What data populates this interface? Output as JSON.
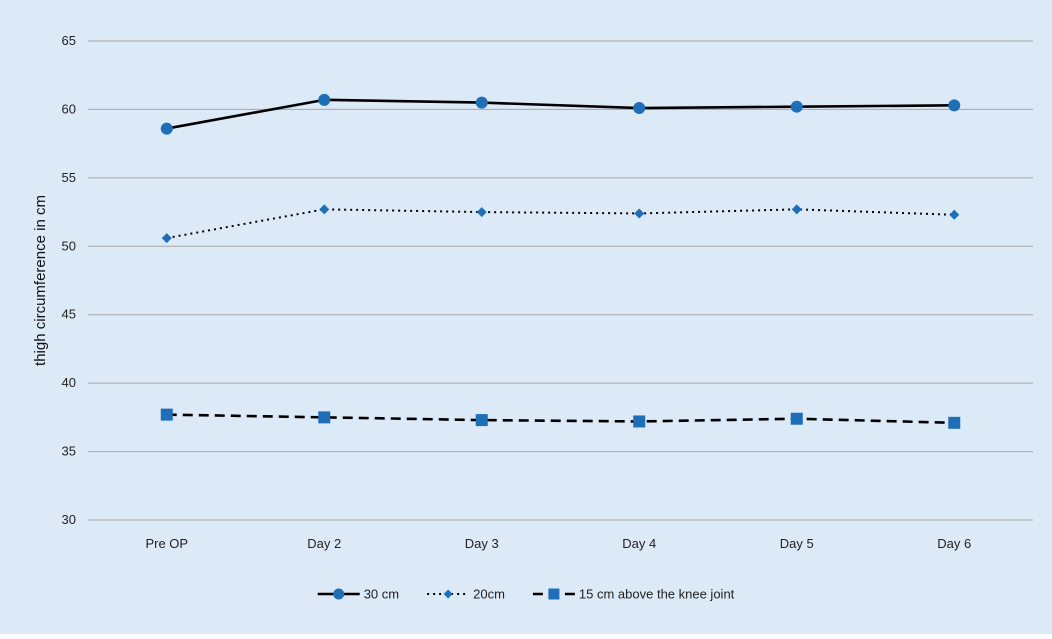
{
  "colors": {
    "background": "#dce9f7",
    "line": "#000000",
    "marker": "#1f6fb8",
    "grid": "#a6a6a6"
  },
  "chart_data": {
    "type": "line",
    "categories": [
      "Pre OP",
      "Day 2",
      "Day 3",
      "Day 4",
      "Day 5",
      "Day 6"
    ],
    "ylabel": "thigh circumference in cm",
    "ylim": [
      30,
      65
    ],
    "yticks": [
      30,
      35,
      40,
      45,
      50,
      55,
      60,
      65
    ],
    "grid": true,
    "legend_position": "bottom",
    "series": [
      {
        "name": "30 cm",
        "values": [
          58.6,
          60.7,
          60.5,
          60.1,
          60.2,
          60.3
        ],
        "dash": "solid",
        "marker": "circle"
      },
      {
        "name": "20cm",
        "values": [
          50.6,
          52.7,
          52.5,
          52.4,
          52.7,
          52.3
        ],
        "dash": "dotted",
        "marker": "diamond"
      },
      {
        "name": "15 cm above the knee joint",
        "values": [
          37.7,
          37.5,
          37.3,
          37.2,
          37.4,
          37.1
        ],
        "dash": "dashed",
        "marker": "square"
      }
    ]
  }
}
